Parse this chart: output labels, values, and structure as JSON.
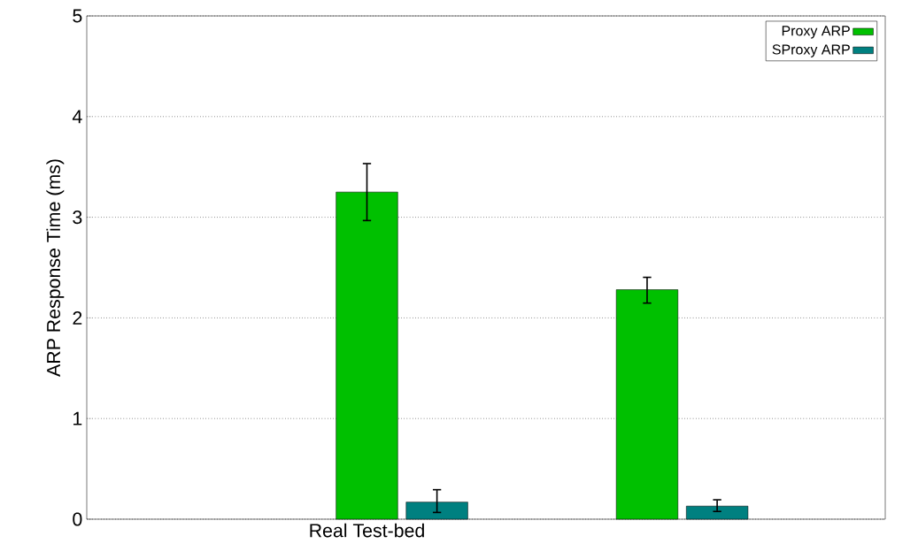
{
  "chart_data": {
    "type": "bar",
    "ylabel": "ARP Response Time (ms)",
    "categories": [
      "Real Test-bed",
      null
    ],
    "series": [
      {
        "name": "Proxy ARP",
        "color": "#00c000",
        "values": [
          3.25,
          2.28
        ],
        "errors": [
          [
            2.96,
            3.54
          ],
          [
            2.14,
            2.41
          ]
        ]
      },
      {
        "name": "SProxy ARP",
        "color": "#008080",
        "values": [
          0.17,
          0.13
        ],
        "errors": [
          [
            0.06,
            0.3
          ],
          [
            0.07,
            0.2
          ]
        ]
      }
    ],
    "ylim": [
      0,
      5
    ],
    "yticks": [
      0,
      1,
      2,
      3,
      4,
      5
    ],
    "grid": "y",
    "legend": "top right"
  }
}
